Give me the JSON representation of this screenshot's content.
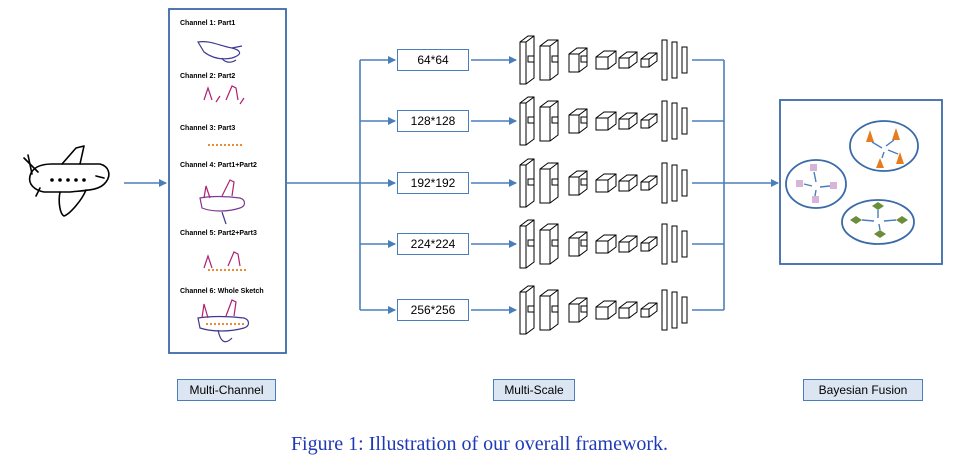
{
  "channels": [
    {
      "label": "Channel 1:  Part1"
    },
    {
      "label": "Channel 2:  Part2"
    },
    {
      "label": "Channel 3:  Part3"
    },
    {
      "label": "Channel 4:  Part1+Part2"
    },
    {
      "label": "Channel 5:  Part2+Part3"
    },
    {
      "label": "Channel 6:  Whole Sketch"
    }
  ],
  "scales": [
    "64*64",
    "128*128",
    "192*192",
    "224*224",
    "256*256"
  ],
  "sections": {
    "multi_channel": "Multi-Channel",
    "multi_scale": "Multi-Scale",
    "bayesian_fusion": "Bayesian Fusion"
  },
  "caption": "Figure 1: Illustration of our overall framework.",
  "colors": {
    "arrow": "#4a7ebb",
    "part_purple": "#7b3c8f",
    "part_pink": "#c2185b",
    "part_orange": "#e87b1e",
    "caption_blue": "#1f39b8",
    "tag_fill": "#dce6f2"
  }
}
